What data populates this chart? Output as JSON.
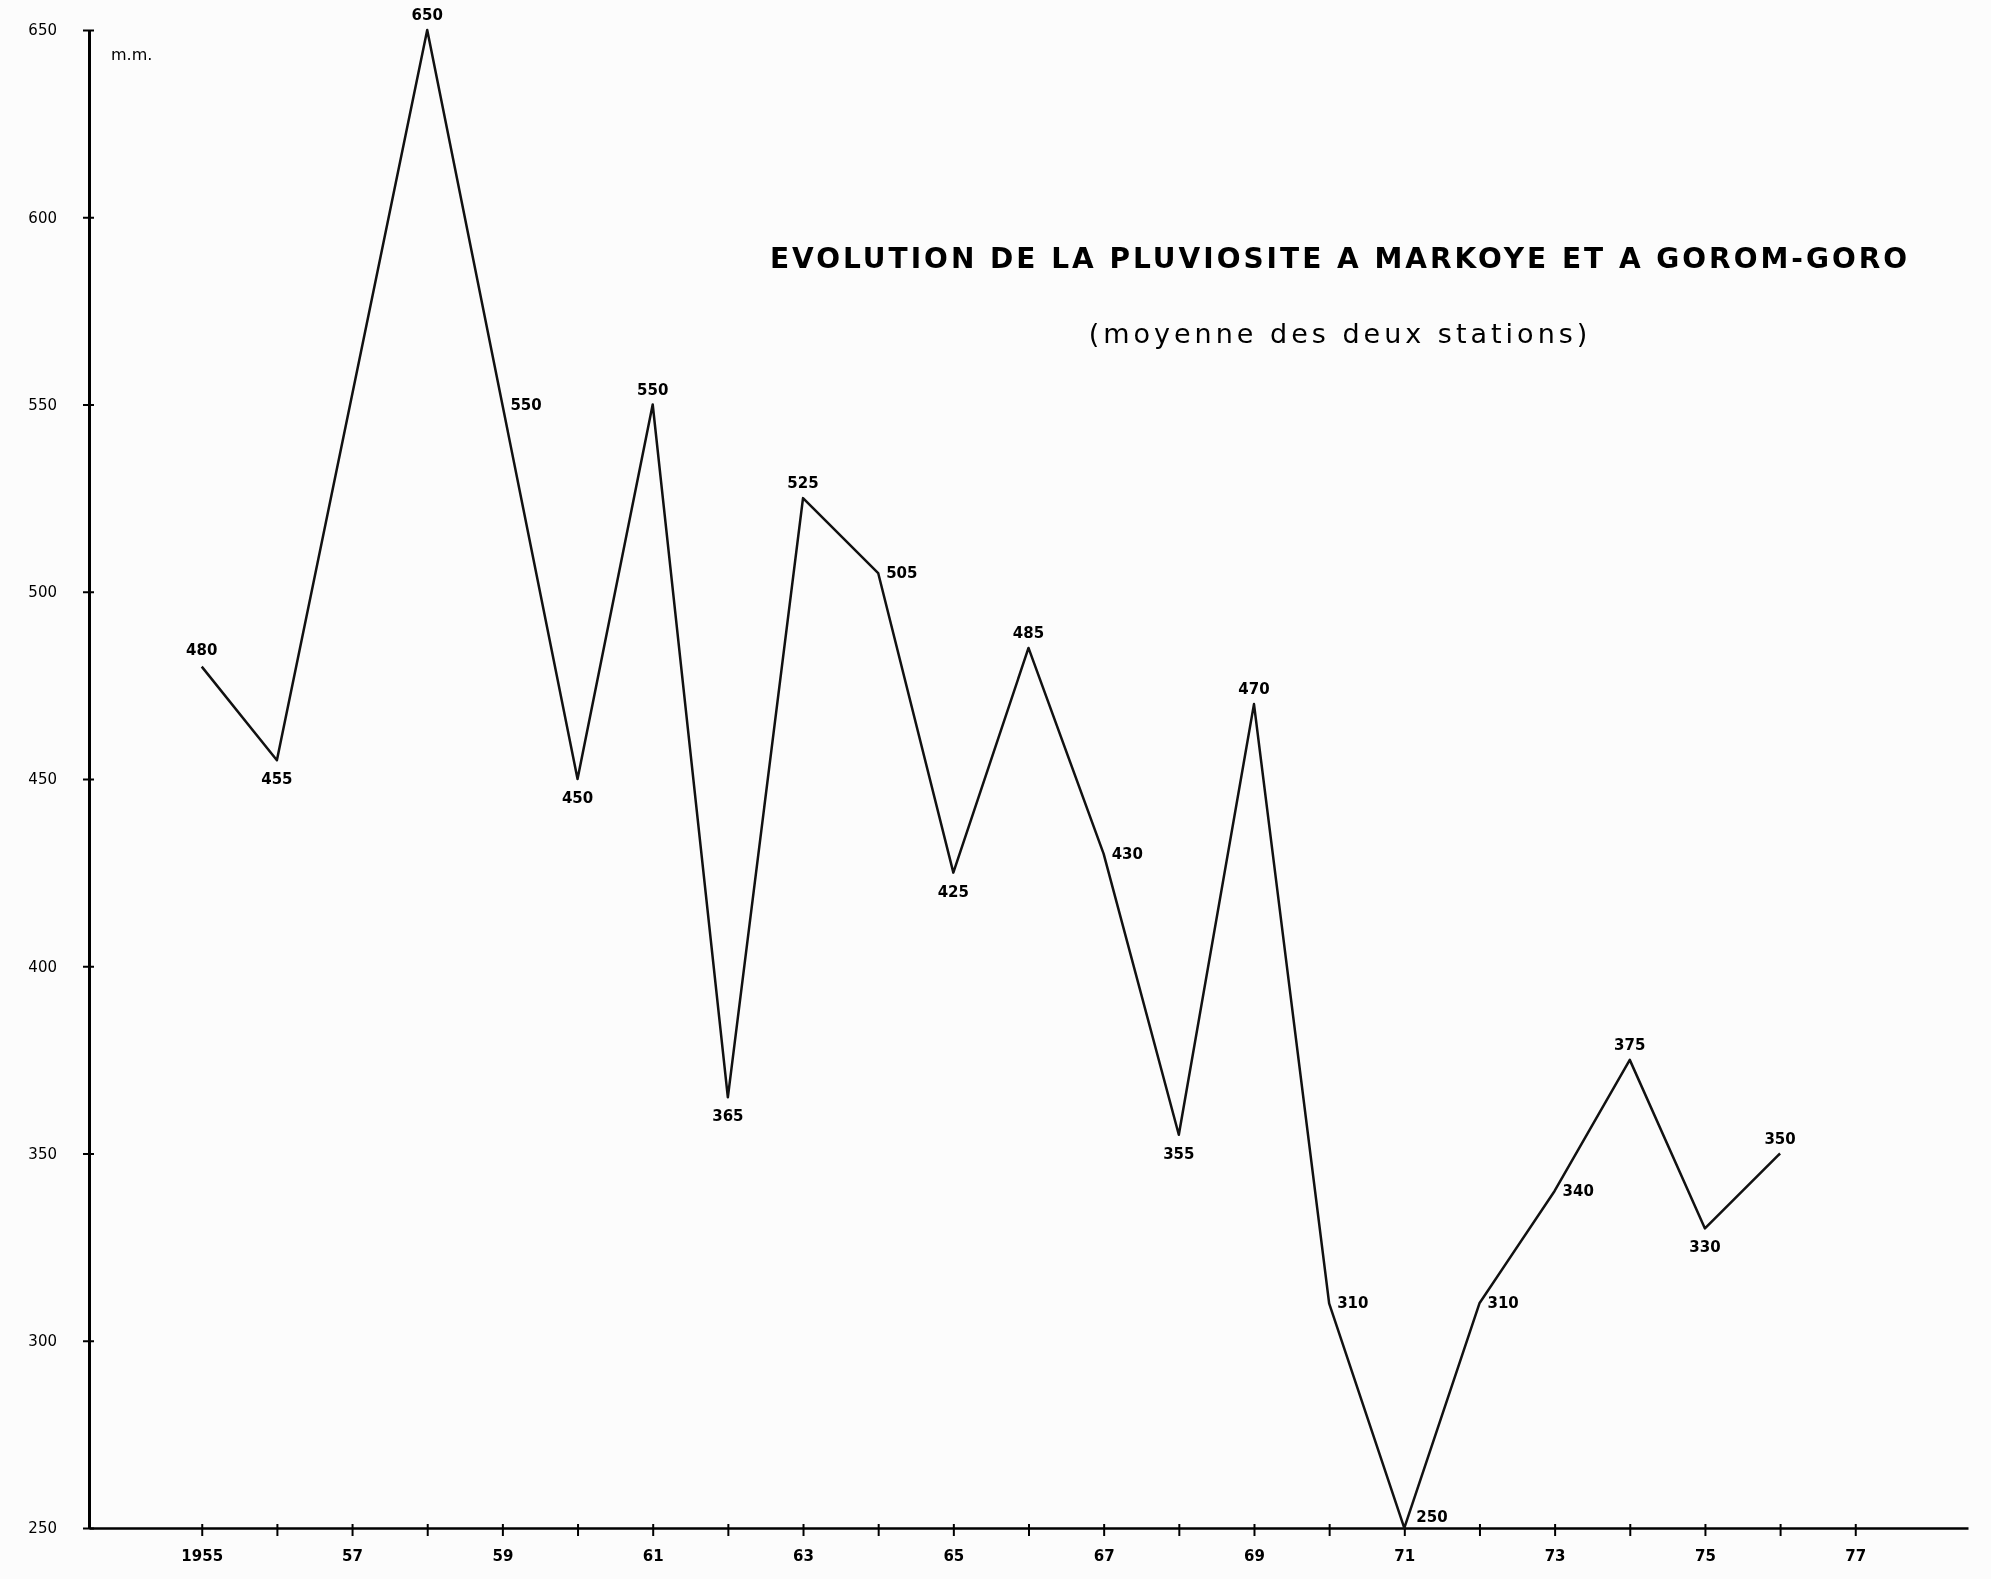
{
  "chart_data": {
    "type": "line",
    "title": "EVOLUTION  DE LA PLUVIOSITE A MARKOYE  ET A GOROM-GORO",
    "subtitle": "(moyenne des deux stations)",
    "ylabel": "m.m.",
    "x": [
      1955,
      1956,
      1958,
      1959,
      1960,
      1961,
      1962,
      1963,
      1964,
      1965,
      1966,
      1967,
      1968,
      1969,
      1970,
      1971,
      1972,
      1973,
      1974,
      1975,
      1976
    ],
    "series": [
      {
        "color": "#111111",
        "values": [
          480,
          455,
          650,
          550,
          450,
          550,
          365,
          525,
          505,
          425,
          485,
          430,
          355,
          470,
          310,
          250,
          310,
          340,
          375,
          330,
          350
        ]
      }
    ],
    "xlim": [
      1953.5,
      1978.5
    ],
    "xticks": [
      {
        "value": 1955,
        "label": "1955"
      },
      {
        "value": 1956,
        "label": null
      },
      {
        "value": 1957,
        "label": "57"
      },
      {
        "value": 1958,
        "label": null
      },
      {
        "value": 1959,
        "label": "59"
      },
      {
        "value": 1960,
        "label": null
      },
      {
        "value": 1961,
        "label": "61"
      },
      {
        "value": 1962,
        "label": null
      },
      {
        "value": 1963,
        "label": "63"
      },
      {
        "value": 1964,
        "label": null
      },
      {
        "value": 1965,
        "label": "65"
      },
      {
        "value": 1966,
        "label": null
      },
      {
        "value": 1967,
        "label": "67"
      },
      {
        "value": 1968,
        "label": null
      },
      {
        "value": 1969,
        "label": "69"
      },
      {
        "value": 1970,
        "label": null
      },
      {
        "value": 1971,
        "label": "71"
      },
      {
        "value": 1972,
        "label": null
      },
      {
        "value": 1973,
        "label": "73"
      },
      {
        "value": 1974,
        "label": null
      },
      {
        "value": 1975,
        "label": "75"
      },
      {
        "value": 1976,
        "label": null
      },
      {
        "value": 1977,
        "label": "77"
      }
    ],
    "ylim": [
      250,
      650
    ],
    "yticks": [
      250,
      300,
      350,
      400,
      450,
      500,
      550,
      600,
      650
    ],
    "data_labels": true,
    "grid": false,
    "marker": "none",
    "line_style": "solid"
  }
}
